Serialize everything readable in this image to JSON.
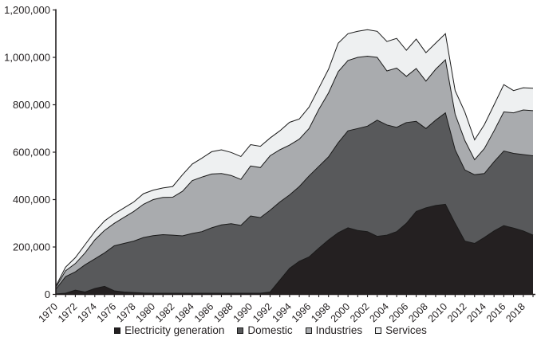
{
  "chart_data": {
    "type": "area",
    "stacked": true,
    "title": "",
    "xlabel": "",
    "ylabel": "",
    "grid": false,
    "legend_position": "bottom",
    "ylim": [
      0,
      1200000
    ],
    "y_tick_labels": [
      "0",
      "200,000",
      "400,000",
      "600,000",
      "800,000",
      "1,000,000",
      "1,200,000"
    ],
    "y_tick_values": [
      0,
      200000,
      400000,
      600000,
      800000,
      1000000,
      1200000
    ],
    "x": [
      1970,
      1971,
      1972,
      1973,
      1974,
      1975,
      1976,
      1977,
      1978,
      1979,
      1980,
      1981,
      1982,
      1983,
      1984,
      1985,
      1986,
      1987,
      1988,
      1989,
      1990,
      1991,
      1992,
      1993,
      1994,
      1995,
      1996,
      1997,
      1998,
      1999,
      2000,
      2001,
      2002,
      2003,
      2004,
      2005,
      2006,
      2007,
      2008,
      2009,
      2010,
      2011,
      2012,
      2013,
      2014,
      2015,
      2016,
      2017,
      2018,
      2019
    ],
    "x_tick_labels": [
      "1970",
      "1972",
      "1974",
      "1976",
      "1978",
      "1980",
      "1982",
      "1984",
      "1986",
      "1988",
      "1990",
      "1992",
      "1994",
      "1996",
      "1998",
      "2000",
      "2002",
      "2004",
      "2006",
      "2008",
      "2010",
      "2012",
      "2014",
      "2016",
      "2018"
    ],
    "series": [
      {
        "name": "Electricity generation",
        "color": "#242021",
        "values": [
          2000,
          5000,
          18000,
          10000,
          25000,
          34000,
          15000,
          10000,
          8000,
          6000,
          5000,
          5000,
          5000,
          5000,
          5000,
          5000,
          5000,
          5000,
          5000,
          5000,
          5000,
          5000,
          10000,
          60000,
          110000,
          140000,
          158000,
          195000,
          230000,
          260000,
          281000,
          270000,
          265000,
          245000,
          250000,
          265000,
          300000,
          350000,
          365000,
          375000,
          380000,
          300000,
          225000,
          215000,
          240000,
          268000,
          290000,
          280000,
          268000,
          250000
        ]
      },
      {
        "name": "Domestic",
        "color": "#58595b",
        "values": [
          20000,
          70000,
          77000,
          115000,
          125000,
          141000,
          190000,
          205000,
          217000,
          234000,
          243000,
          247000,
          245000,
          242000,
          252000,
          260000,
          276000,
          288000,
          293000,
          286000,
          326000,
          319000,
          345000,
          330000,
          310000,
          315000,
          342000,
          345000,
          350000,
          380000,
          409000,
          430000,
          445000,
          490000,
          465000,
          440000,
          425000,
          380000,
          335000,
          360000,
          386000,
          310000,
          300000,
          290000,
          270000,
          292000,
          315000,
          315000,
          322000,
          335000
        ]
      },
      {
        "name": "Industries",
        "color": "#a9abae",
        "values": [
          8000,
          25000,
          35000,
          50000,
          80000,
          95000,
          95000,
          110000,
          125000,
          140000,
          152000,
          157000,
          160000,
          188000,
          223000,
          230000,
          227000,
          217000,
          204000,
          194000,
          211000,
          211000,
          230000,
          220000,
          210000,
          200000,
          200000,
          240000,
          270000,
          300000,
          297000,
          300000,
          295000,
          265000,
          228000,
          250000,
          195000,
          223000,
          200000,
          215000,
          224000,
          150000,
          124000,
          63000,
          105000,
          130000,
          165000,
          171000,
          188000,
          190000
        ]
      },
      {
        "name": "Services",
        "color": "#eef0f1",
        "values": [
          5000,
          15000,
          25000,
          35000,
          35000,
          40000,
          40000,
          40000,
          40000,
          45000,
          40000,
          40000,
          45000,
          70000,
          70000,
          80000,
          94000,
          100000,
          97000,
          97000,
          90000,
          90000,
          75000,
          80000,
          96000,
          85000,
          90000,
          90000,
          100000,
          120000,
          113000,
          110000,
          112000,
          110000,
          124000,
          125000,
          110000,
          124000,
          120000,
          110000,
          110000,
          100000,
          120000,
          84000,
          101000,
          110000,
          115000,
          94000,
          94000,
          95000
        ]
      }
    ]
  },
  "style": {
    "axis_color": "#231f20",
    "outline_color": "#1a1a1a",
    "background": "#ffffff"
  }
}
